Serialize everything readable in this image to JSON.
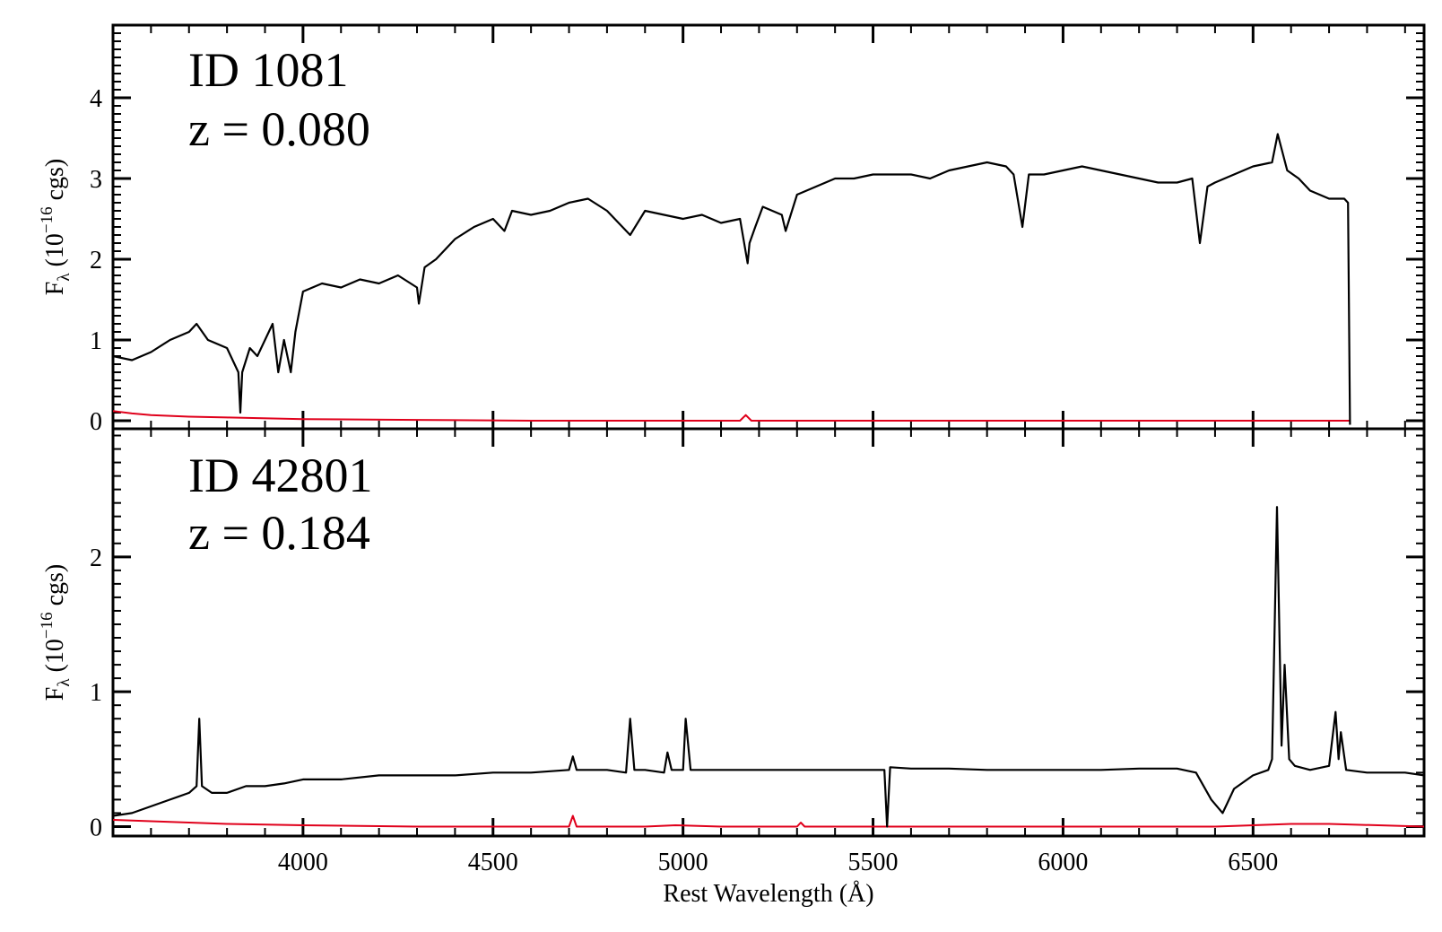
{
  "chart_data": [
    {
      "type": "line",
      "panel": "top",
      "annotations": [
        "ID 1081",
        "z = 0.080"
      ],
      "ylabel": {
        "main": "F",
        "sub": "λ",
        "open": " (10",
        "sup": "−16",
        "close": " cgs)"
      },
      "xlim": [
        3500,
        6950
      ],
      "ylim": [
        -0.1,
        4.9
      ],
      "yticks": [
        0,
        1,
        2,
        3,
        4
      ],
      "xticks": [
        4000,
        4500,
        5000,
        5500,
        6000,
        6500
      ],
      "show_x_tick_labels": false,
      "series": [
        {
          "color": "#000000",
          "x": [
            3500,
            3550,
            3600,
            3650,
            3700,
            3720,
            3750,
            3800,
            3830,
            3835,
            3840,
            3860,
            3880,
            3900,
            3920,
            3935,
            3950,
            3968,
            3980,
            4000,
            4050,
            4100,
            4150,
            4200,
            4250,
            4300,
            4305,
            4320,
            4350,
            4400,
            4450,
            4500,
            4530,
            4550,
            4600,
            4650,
            4700,
            4750,
            4800,
            4861,
            4900,
            4950,
            5000,
            5050,
            5100,
            5150,
            5170,
            5175,
            5190,
            5210,
            5260,
            5270,
            5300,
            5350,
            5400,
            5450,
            5500,
            5550,
            5600,
            5650,
            5700,
            5750,
            5800,
            5850,
            5870,
            5893,
            5910,
            5950,
            6000,
            6050,
            6100,
            6150,
            6200,
            6250,
            6300,
            6340,
            6360,
            6380,
            6400,
            6450,
            6500,
            6550,
            6565,
            6590,
            6620,
            6650,
            6700,
            6740,
            6750,
            6755
          ],
          "y": [
            0.8,
            0.75,
            0.85,
            1.0,
            1.1,
            1.2,
            1.0,
            0.9,
            0.6,
            0.1,
            0.6,
            0.9,
            0.8,
            1.0,
            1.2,
            0.6,
            1.0,
            0.6,
            1.1,
            1.6,
            1.7,
            1.65,
            1.75,
            1.7,
            1.8,
            1.65,
            1.45,
            1.9,
            2.0,
            2.25,
            2.4,
            2.5,
            2.35,
            2.6,
            2.55,
            2.6,
            2.7,
            2.75,
            2.6,
            2.3,
            2.6,
            2.55,
            2.5,
            2.55,
            2.45,
            2.5,
            1.95,
            2.2,
            2.4,
            2.65,
            2.55,
            2.35,
            2.8,
            2.9,
            3.0,
            3.0,
            3.05,
            3.05,
            3.05,
            3.0,
            3.1,
            3.15,
            3.2,
            3.15,
            3.05,
            2.4,
            3.05,
            3.05,
            3.1,
            3.15,
            3.1,
            3.05,
            3.0,
            2.95,
            2.95,
            3.0,
            2.2,
            2.9,
            2.95,
            3.05,
            3.15,
            3.2,
            3.55,
            3.1,
            3.0,
            2.85,
            2.75,
            2.75,
            2.7,
            -0.05
          ]
        },
        {
          "color": "#e0001b",
          "x": [
            3500,
            3550,
            3600,
            3700,
            3800,
            4000,
            4300,
            4600,
            4900,
            5150,
            5165,
            5180,
            5400,
            5700,
            6000,
            6300,
            6550,
            6755
          ],
          "y": [
            0.12,
            0.09,
            0.07,
            0.05,
            0.04,
            0.02,
            0.01,
            0.0,
            0.0,
            0.0,
            0.07,
            0.0,
            0.0,
            0.0,
            0.0,
            0.0,
            0.0,
            0.0
          ]
        }
      ]
    },
    {
      "type": "line",
      "panel": "bottom",
      "annotations": [
        "ID 42801",
        "z = 0.184"
      ],
      "ylabel": {
        "main": "F",
        "sub": "λ",
        "open": " (10",
        "sup": "−16",
        "close": " cgs)"
      },
      "xlabel": "Rest Wavelength (Å)",
      "xlim": [
        3500,
        6950
      ],
      "ylim": [
        -0.07,
        2.95
      ],
      "yticks": [
        0,
        1,
        2
      ],
      "xticks": [
        4000,
        4500,
        5000,
        5500,
        6000,
        6500
      ],
      "show_x_tick_labels": true,
      "series": [
        {
          "color": "#000000",
          "x": [
            3500,
            3550,
            3600,
            3650,
            3700,
            3720,
            3727,
            3734,
            3760,
            3800,
            3850,
            3900,
            3950,
            4000,
            4050,
            4100,
            4200,
            4300,
            4400,
            4500,
            4600,
            4700,
            4710,
            4720,
            4800,
            4850,
            4861,
            4872,
            4900,
            4950,
            4959,
            4970,
            5000,
            5007,
            5020,
            5100,
            5200,
            5300,
            5400,
            5500,
            5530,
            5537,
            5545,
            5600,
            5700,
            5800,
            5900,
            6000,
            6100,
            6200,
            6300,
            6350,
            6390,
            6420,
            6450,
            6500,
            6540,
            6550,
            6563,
            6575,
            6583,
            6595,
            6610,
            6650,
            6700,
            6717,
            6725,
            6731,
            6745,
            6800,
            6900,
            6950
          ],
          "y": [
            0.08,
            0.1,
            0.15,
            0.2,
            0.25,
            0.3,
            0.8,
            0.3,
            0.25,
            0.25,
            0.3,
            0.3,
            0.32,
            0.35,
            0.35,
            0.35,
            0.38,
            0.38,
            0.38,
            0.4,
            0.4,
            0.42,
            0.52,
            0.42,
            0.42,
            0.4,
            0.8,
            0.42,
            0.42,
            0.4,
            0.55,
            0.42,
            0.42,
            0.8,
            0.42,
            0.42,
            0.42,
            0.42,
            0.42,
            0.42,
            0.42,
            0.0,
            0.44,
            0.43,
            0.43,
            0.42,
            0.42,
            0.42,
            0.42,
            0.43,
            0.43,
            0.4,
            0.2,
            0.1,
            0.28,
            0.38,
            0.42,
            0.5,
            2.37,
            0.6,
            1.2,
            0.5,
            0.45,
            0.42,
            0.45,
            0.85,
            0.5,
            0.7,
            0.42,
            0.4,
            0.4,
            0.38
          ]
        },
        {
          "color": "#e0001b",
          "x": [
            3500,
            3600,
            3700,
            3800,
            4000,
            4300,
            4600,
            4700,
            4710,
            4720,
            4900,
            4980,
            5100,
            5300,
            5310,
            5320,
            5500,
            5800,
            6100,
            6400,
            6600,
            6700,
            6950
          ],
          "y": [
            0.05,
            0.04,
            0.03,
            0.02,
            0.01,
            0.0,
            0.0,
            0.0,
            0.08,
            0.0,
            0.0,
            0.01,
            0.0,
            0.0,
            0.03,
            0.0,
            0.0,
            0.0,
            0.0,
            0.0,
            0.02,
            0.02,
            0.0
          ]
        }
      ]
    }
  ]
}
